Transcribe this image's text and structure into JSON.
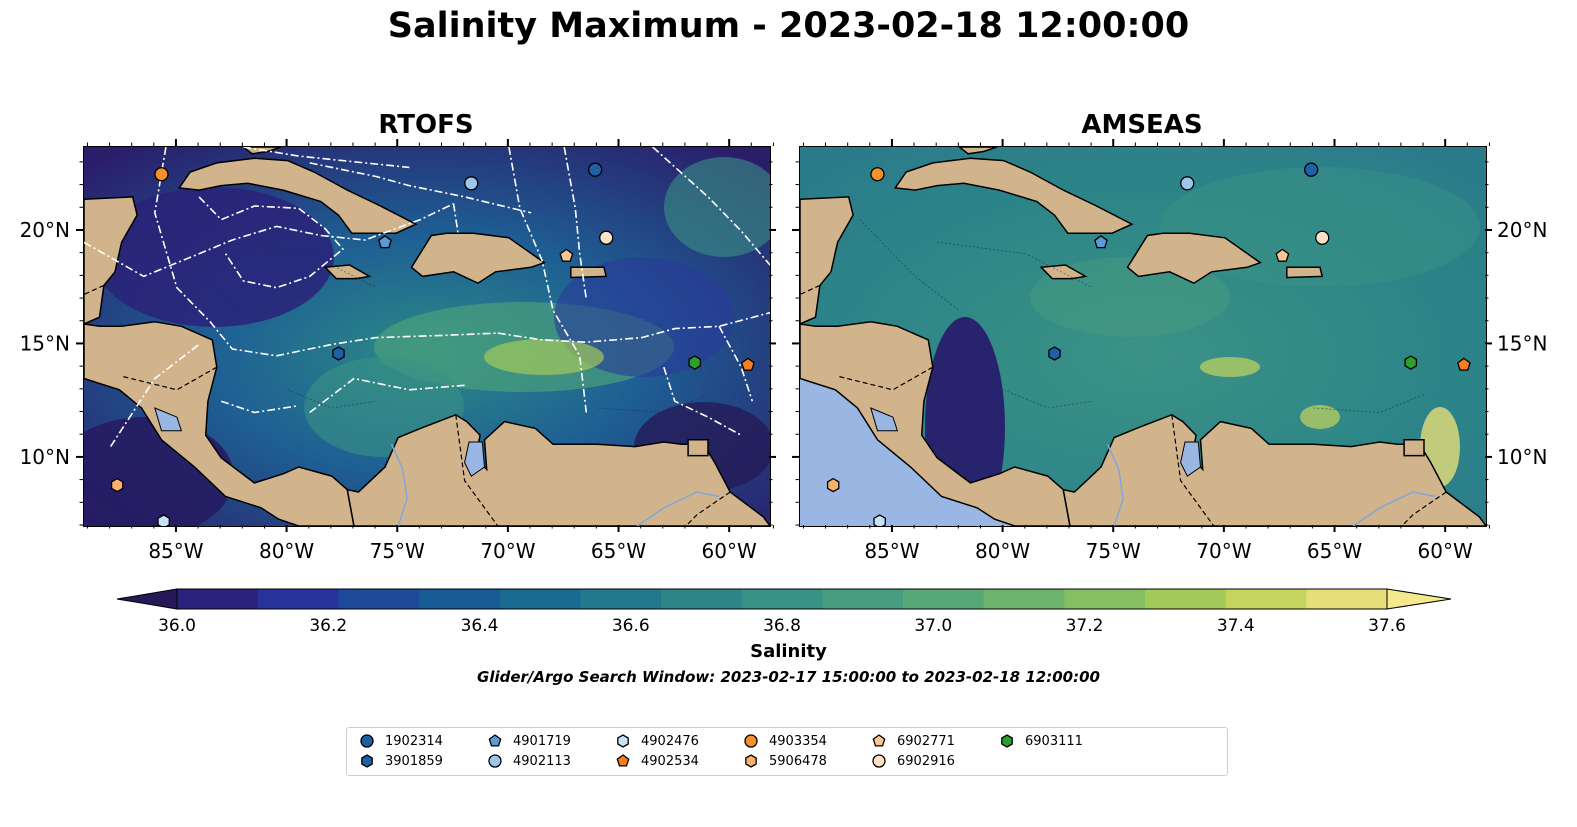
{
  "title": "Salinity Maximum - 2023-02-18 12:00:00",
  "panels": [
    {
      "title": "RTOFS"
    },
    {
      "title": "AMSEAS"
    }
  ],
  "axes": {
    "lon_range": [
      -89.2,
      -58.2
    ],
    "lat_range": [
      7,
      23.7
    ],
    "lon_labels": [
      "85°W",
      "80°W",
      "75°W",
      "70°W",
      "65°W",
      "60°W"
    ],
    "lon_values": [
      -85,
      -80,
      -75,
      -70,
      -65,
      -60
    ],
    "lat_labels": [
      "20°N",
      "15°N",
      "10°N"
    ],
    "lat_values": [
      20,
      15,
      10
    ]
  },
  "colorbar": {
    "title": "Salinity",
    "min": 36.0,
    "max": 37.6,
    "step": 0.1,
    "tick_labels": [
      "36.0",
      "36.2",
      "36.4",
      "36.6",
      "36.8",
      "37.0",
      "37.2",
      "37.4",
      "37.6"
    ],
    "colormap": "haline",
    "colors": [
      "#251a57",
      "#29237e",
      "#27339b",
      "#1f4a9b",
      "#175b97",
      "#196b91",
      "#22788c",
      "#2d8588",
      "#3a9185",
      "#489c7f",
      "#57a877",
      "#6cb46e",
      "#86be62",
      "#a3c95b",
      "#c4d45e",
      "#e6de78",
      "#f5e98d"
    ]
  },
  "subtitle": "Glider/Argo Search Window: 2023-02-17 15:00:00 to 2023-02-18 12:00:00",
  "colors": {
    "land": "#d2b48c",
    "lake": "#9ab7e3",
    "border": "#000000"
  },
  "legend": [
    {
      "id": "1902314",
      "marker": "circle",
      "color": "#1f5fa6"
    },
    {
      "id": "3901859",
      "marker": "hexagon",
      "color": "#1f5fa6"
    },
    {
      "id": "4901719",
      "marker": "pentagon",
      "color": "#5b9bd5"
    },
    {
      "id": "4902113",
      "marker": "circle",
      "color": "#9dc6ea"
    },
    {
      "id": "4902476",
      "marker": "hexagon",
      "color": "#c6e2f7"
    },
    {
      "id": "4902534",
      "marker": "pentagon",
      "color": "#f57f20"
    },
    {
      "id": "4903354",
      "marker": "circle",
      "color": "#f5902e"
    },
    {
      "id": "5906478",
      "marker": "hexagon",
      "color": "#fbb06b"
    },
    {
      "id": "6902771",
      "marker": "pentagon",
      "color": "#fcc693"
    },
    {
      "id": "6902916",
      "marker": "circle",
      "color": "#fde2c6"
    },
    {
      "id": "6903111",
      "marker": "hexagon",
      "color": "#2ca02c"
    }
  ],
  "markers": [
    {
      "id": "4903354",
      "lon": -85.7,
      "lat": 22.5
    },
    {
      "id": "1902314",
      "lon": -66.1,
      "lat": 22.7
    },
    {
      "id": "4902113",
      "lon": -71.7,
      "lat": 22.1
    },
    {
      "id": "4901719",
      "lon": -75.6,
      "lat": 19.5
    },
    {
      "id": "6902916",
      "lon": -65.6,
      "lat": 19.7
    },
    {
      "id": "6902771",
      "lon": -67.4,
      "lat": 18.9
    },
    {
      "id": "3901859",
      "lon": -77.7,
      "lat": 14.6
    },
    {
      "id": "6903111",
      "lon": -61.6,
      "lat": 14.2
    },
    {
      "id": "4902534",
      "lon": -59.2,
      "lat": 14.1
    },
    {
      "id": "5906478",
      "lon": -87.7,
      "lat": 8.8
    },
    {
      "id": "4902476",
      "lon": -85.6,
      "lat": 7.2
    }
  ]
}
